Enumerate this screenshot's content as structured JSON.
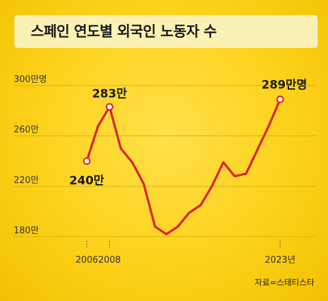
{
  "title": "스페인 연도별 외국인 노동자 수",
  "source": "자료=스태티스타",
  "colors": {
    "line": "#dd1f1f",
    "background": "#fdd21c",
    "title_box": "#fbf1b4",
    "gridline": "#caa600",
    "text": "#1a1a1a"
  },
  "chart_data": {
    "type": "line",
    "title": "스페인 연도별 외국인 노동자 수",
    "unit": "만명",
    "x_tick_labels": [
      "2006",
      "2008",
      "2023년"
    ],
    "y_tick_labels": [
      "300만명",
      "260만",
      "220만",
      "180만"
    ],
    "y_ticks": [
      300,
      260,
      220,
      180
    ],
    "ylim": [
      180,
      300
    ],
    "xlim": [
      2006,
      2023
    ],
    "grid": true,
    "series": [
      {
        "x": [
          2006,
          2007,
          2008,
          2009,
          2010,
          2011,
          2012,
          2013,
          2014,
          2015,
          2016,
          2017,
          2018,
          2019,
          2020,
          2021,
          2022,
          2023
        ],
        "values": [
          240,
          268,
          283,
          250,
          239,
          222,
          188,
          182,
          188,
          199,
          205,
          220,
          239,
          228,
          230,
          249,
          268,
          289
        ]
      }
    ],
    "data_labels": [
      {
        "x": 2006,
        "y": 240,
        "text": "240만"
      },
      {
        "x": 2008,
        "y": 283,
        "text": "283만"
      },
      {
        "x": 2023,
        "y": 289,
        "text": "289만명"
      }
    ]
  }
}
